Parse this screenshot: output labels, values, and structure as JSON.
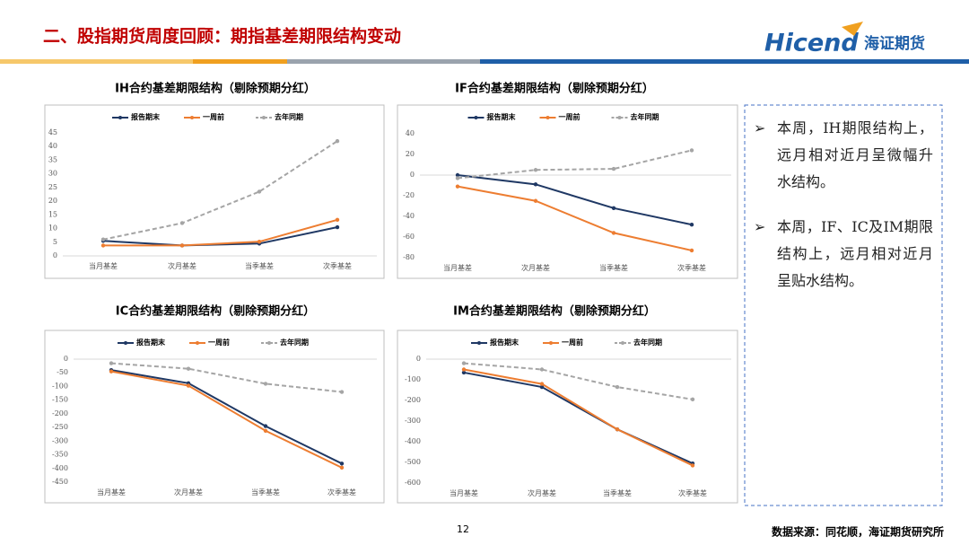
{
  "header": {
    "title": "二、股指期货周度回顾：期指基差期限结构变动",
    "logo_en": "Hicend",
    "logo_cn": "海证期货"
  },
  "chart_data": [
    {
      "type": "line",
      "title": "IH合约基差期限结构（剔除预期分红）",
      "categories": [
        "当月基差",
        "次月基差",
        "当季基差",
        "次季基差"
      ],
      "series": [
        {
          "name": "报告期末",
          "color": "#1f3864",
          "values": [
            5.5,
            3.8,
            4.5,
            10.5
          ]
        },
        {
          "name": "一周前",
          "color": "#ed7d31",
          "values": [
            3.8,
            3.8,
            5.2,
            13.2
          ]
        },
        {
          "name": "去年同期",
          "color": "#a5a5a5",
          "line_style": "dashed",
          "values": [
            6,
            12,
            23.5,
            42
          ]
        }
      ],
      "ylim": [
        0,
        45
      ],
      "yticks": [
        0,
        5,
        10,
        15,
        20,
        25,
        30,
        35,
        40,
        45
      ],
      "legend": "top"
    },
    {
      "type": "line",
      "title": "IF合约基差期限结构（剔除预期分红）",
      "categories": [
        "当月基差",
        "次月基差",
        "当季基差",
        "次季基差"
      ],
      "series": [
        {
          "name": "报告期末",
          "color": "#1f3864",
          "values": [
            0,
            -9,
            -32,
            -48
          ]
        },
        {
          "name": "一周前",
          "color": "#ed7d31",
          "values": [
            -11,
            -25,
            -56,
            -73
          ]
        },
        {
          "name": "去年同期",
          "color": "#a5a5a5",
          "line_style": "dashed",
          "values": [
            -3,
            5,
            6,
            24
          ]
        }
      ],
      "ylim": [
        -80,
        40
      ],
      "yticks": [
        -80,
        -60,
        -40,
        -20,
        0,
        20,
        40
      ],
      "legend": "top"
    },
    {
      "type": "line",
      "title": "IC合约基差期限结构（剔除预期分红）",
      "categories": [
        "当月基差",
        "次月基差",
        "当季基差",
        "次季基差"
      ],
      "series": [
        {
          "name": "报告期末",
          "color": "#1f3864",
          "values": [
            -40,
            -88,
            -245,
            -382
          ]
        },
        {
          "name": "一周前",
          "color": "#ed7d31",
          "values": [
            -45,
            -97,
            -262,
            -397
          ]
        },
        {
          "name": "去年同期",
          "color": "#a5a5a5",
          "line_style": "dashed",
          "values": [
            -15,
            -35,
            -90,
            -120
          ]
        }
      ],
      "ylim": [
        -450,
        0
      ],
      "yticks": [
        -450,
        -400,
        -350,
        -300,
        -250,
        -200,
        -150,
        -100,
        -50,
        0
      ],
      "legend": "top"
    },
    {
      "type": "line",
      "title": "IM合约基差期限结构（剔除预期分红）",
      "categories": [
        "当月基差",
        "次月基差",
        "当季基差",
        "次季基差"
      ],
      "series": [
        {
          "name": "报告期末",
          "color": "#1f3864",
          "values": [
            -65,
            -135,
            -340,
            -505
          ]
        },
        {
          "name": "一周前",
          "color": "#ed7d31",
          "values": [
            -50,
            -120,
            -340,
            -515
          ]
        },
        {
          "name": "去年同期",
          "color": "#a5a5a5",
          "line_style": "dashed",
          "values": [
            -20,
            -50,
            -135,
            -195
          ]
        }
      ],
      "ylim": [
        -600,
        0
      ],
      "yticks": [
        -600,
        -500,
        -400,
        -300,
        -200,
        -100,
        0
      ],
      "legend": "top"
    }
  ],
  "notes": [
    "本周，IH期限结构上，远月相对近月呈微幅升水结构。",
    "本周，IF、IC及IM期限结构上，远月相对近月呈贴水结构。"
  ],
  "footer": {
    "page": "12",
    "source": "数据来源：同花顺，海证期货研究所"
  }
}
